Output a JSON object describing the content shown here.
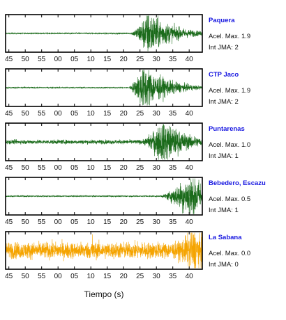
{
  "chart_data": {
    "type": "line",
    "x_tick_labels": [
      "45",
      "50",
      "55",
      "00",
      "05",
      "10",
      "15",
      "20",
      "25",
      "30",
      "35",
      "40"
    ],
    "xlabel": "Tiempo (s)",
    "colors": {
      "normal": "#1b6b1b",
      "weak": "#f5a400",
      "station_name": "#1515e0"
    },
    "stations": [
      {
        "name": "Paquera",
        "accel": "Acel. Max. 1.9",
        "jma": "Int JMA: 2",
        "color": "normal",
        "onset_s": 21.5,
        "peak_s": 27.5,
        "noise": 0.03,
        "amp": 1.0,
        "burst_s": null
      },
      {
        "name": "CTP Jaco",
        "accel": "Acel. Max. 1.9",
        "jma": "Int JMA: 2",
        "color": "normal",
        "onset_s": 21.0,
        "peak_s": 26.0,
        "noise": 0.03,
        "amp": 1.0,
        "burst_s": null
      },
      {
        "name": "Puntarenas",
        "accel": "Acel. Max. 1.0",
        "jma": "Int JMA: 1",
        "color": "normal",
        "onset_s": 24.0,
        "peak_s": 32.0,
        "noise": 0.09,
        "amp": 0.95,
        "burst_s": null
      },
      {
        "name": "Bebedero, Escazu",
        "accel": "Acel. Max. 0.5",
        "jma": "Int JMA: 1",
        "color": "normal",
        "onset_s": 30.0,
        "peak_s": 40.5,
        "noise": 0.03,
        "amp": 1.0,
        "burst_s": null
      },
      {
        "name": "La Sabana",
        "accel": "Acel. Max. 0.0",
        "jma": "Int JMA: 0",
        "color": "weak",
        "onset_s": 30.5,
        "peak_s": 41.5,
        "noise": 0.35,
        "amp": 0.95,
        "burst_s": 10.5
      }
    ]
  }
}
